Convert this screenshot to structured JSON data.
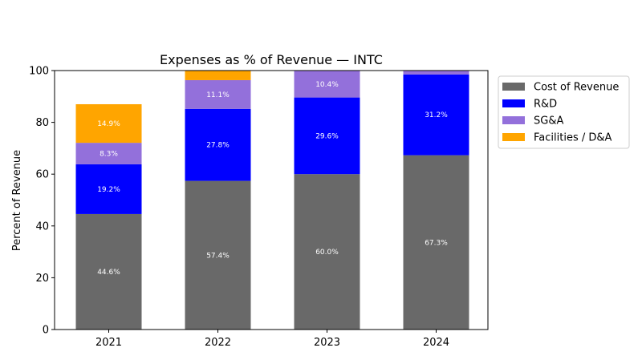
{
  "chart_data": {
    "type": "bar",
    "stacked": true,
    "title": "Expenses as % of Revenue — INTC",
    "xlabel": "",
    "ylabel": "Percent of Revenue",
    "ylim": [
      0,
      100
    ],
    "yticks": [
      0,
      20,
      40,
      60,
      80,
      100
    ],
    "categories": [
      "2021",
      "2022",
      "2023",
      "2024"
    ],
    "series": [
      {
        "name": "Cost of Revenue",
        "color": "#696969",
        "values": [
          44.6,
          57.4,
          60.0,
          67.3
        ]
      },
      {
        "name": "R&D",
        "color": "#0000ff",
        "values": [
          19.2,
          27.8,
          29.6,
          31.2
        ]
      },
      {
        "name": "SG&A",
        "color": "#9370db",
        "values": [
          8.3,
          11.1,
          10.4,
          1.5
        ]
      },
      {
        "name": "Facilities / D&A",
        "color": "#ffa500",
        "values": [
          14.9,
          3.7,
          0.0,
          0.0
        ]
      }
    ],
    "data_labels": [
      [
        "44.6%",
        "57.4%",
        "60.0%",
        "67.3%"
      ],
      [
        "19.2%",
        "27.8%",
        "29.6%",
        "31.2%"
      ],
      [
        "8.3%",
        "11.1%",
        "10.4%",
        ""
      ],
      [
        "14.9%",
        "",
        "",
        ""
      ]
    ],
    "legend_placement": "outside-top-right",
    "grid": false
  }
}
